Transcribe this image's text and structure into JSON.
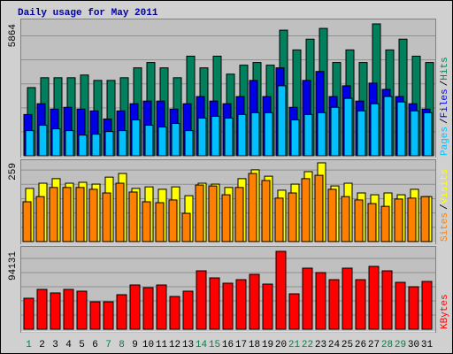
{
  "chart_data": [
    {
      "type": "bar",
      "title": "Daily usage for May 2011",
      "series": [
        {
          "name": "Hits",
          "color": "#00805c",
          "values": [
            3032,
            3470,
            3470,
            3470,
            3590,
            3351,
            3351,
            3470,
            3909,
            4149,
            3909,
            3470,
            4428,
            3909,
            4428,
            3630,
            4029,
            4149,
            4029,
            5585,
            4707,
            5186,
            5664,
            4149,
            4707,
            4149,
            5864,
            4707,
            5186,
            4428,
            4149
          ]
        },
        {
          "name": "Files",
          "color": "#0000e8",
          "values": [
            1835,
            2314,
            2074,
            2154,
            2074,
            1995,
            1636,
            1995,
            2314,
            2433,
            2433,
            2074,
            2314,
            2633,
            2433,
            2314,
            2633,
            3351,
            2633,
            3909,
            2154,
            3351,
            3750,
            2633,
            3112,
            2433,
            3231,
            2952,
            2633,
            2314,
            2074
          ]
        },
        {
          "name": "Pages",
          "color": "#00c0ff",
          "values": [
            1117,
            1356,
            1197,
            1117,
            918,
            957,
            1077,
            1117,
            1596,
            1356,
            1277,
            1436,
            1117,
            1675,
            1755,
            1675,
            1835,
            1915,
            1915,
            3112,
            1596,
            1835,
            1915,
            2154,
            2553,
            1995,
            2314,
            2633,
            2393,
            1995,
            1915
          ]
        }
      ],
      "legend_separator": "/",
      "ylim": [
        0,
        5864
      ],
      "yticks": [
        5864
      ]
    },
    {
      "type": "bar",
      "series": [
        {
          "name": "Visits",
          "color": "#ffff00",
          "values": [
            175,
            192,
            207,
            192,
            195,
            189,
            212,
            224,
            175,
            180,
            172,
            180,
            151,
            192,
            189,
            178,
            207,
            236,
            215,
            169,
            189,
            230,
            259,
            183,
            192,
            160,
            154,
            160,
            154,
            172,
            148
          ]
        },
        {
          "name": "Sites",
          "color": "#ff8000",
          "values": [
            131,
            148,
            178,
            178,
            178,
            172,
            160,
            192,
            163,
            131,
            128,
            137,
            93,
            186,
            183,
            154,
            178,
            224,
            201,
            143,
            160,
            207,
            218,
            172,
            148,
            137,
            125,
            116,
            140,
            143,
            148
          ]
        }
      ],
      "legend_separator": "/",
      "ylim": [
        0,
        259
      ],
      "yticks": [
        259
      ]
    },
    {
      "type": "bar",
      "categories": [
        "1",
        "2",
        "3",
        "4",
        "5",
        "6",
        "7",
        "8",
        "9",
        "10",
        "11",
        "12",
        "13",
        "14",
        "15",
        "16",
        "17",
        "18",
        "19",
        "20",
        "21",
        "22",
        "23",
        "24",
        "25",
        "26",
        "27",
        "28",
        "29",
        "30",
        "31"
      ],
      "category_colors": [
        "#008040",
        "#000000",
        "#000000",
        "#000000",
        "#000000",
        "#000000",
        "#008040",
        "#008040",
        "#000000",
        "#000000",
        "#000000",
        "#000000",
        "#000000",
        "#008040",
        "#008040",
        "#000000",
        "#000000",
        "#000000",
        "#000000",
        "#000000",
        "#008040",
        "#008040",
        "#000000",
        "#000000",
        "#000000",
        "#000000",
        "#000000",
        "#008040",
        "#008040",
        "#000000",
        "#000000"
      ],
      "series": [
        {
          "name": "KBytes",
          "color": "#ff0000",
          "values": [
            37440,
            48140,
            43860,
            48140,
            46000,
            33160,
            33160,
            41720,
            53480,
            50280,
            53480,
            39580,
            46000,
            70600,
            62040,
            55620,
            59900,
            66320,
            54550,
            94131,
            42790,
            73810,
            68460,
            59900,
            73810,
            59900,
            75950,
            70600,
            56690,
            51350,
            57760
          ]
        }
      ],
      "ylim": [
        0,
        94131
      ],
      "yticks": [
        94131
      ]
    }
  ]
}
